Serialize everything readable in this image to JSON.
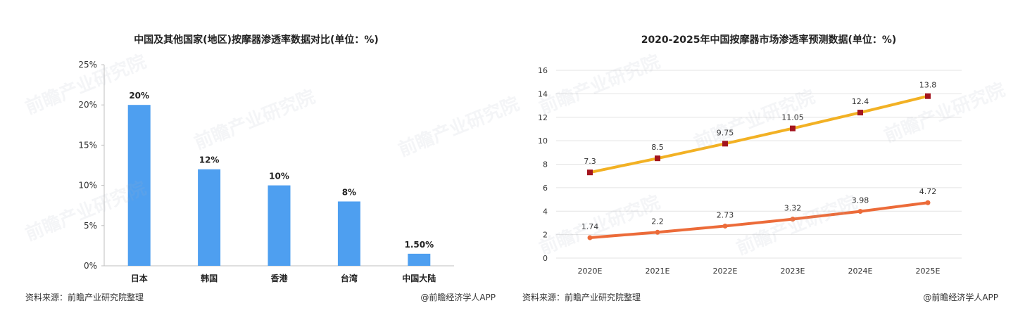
{
  "watermark": "前瞻产业研究院",
  "chart_data": [
    {
      "type": "bar",
      "title": "中国及其他国家(地区)按摩器渗透率数据对比(单位：%)",
      "categories": [
        "日本",
        "韩国",
        "香港",
        "台湾",
        "中国大陆"
      ],
      "values": [
        20,
        12,
        10,
        8,
        1.5
      ],
      "value_labels": [
        "20%",
        "12%",
        "10%",
        "8%",
        "1.50%"
      ],
      "yticks": [
        "0%",
        "5%",
        "10%",
        "15%",
        "20%",
        "25%"
      ],
      "ylim": [
        0,
        25
      ],
      "grid": false,
      "bar_color": "#4e9ff0",
      "source": "资料来源：前瞻产业研究院整理",
      "credit": "@前瞻经济学人APP"
    },
    {
      "type": "line",
      "title": "2020-2025年中国按摩器市场渗透率预测数据(单位：%)",
      "x": [
        "2020E",
        "2021E",
        "2022E",
        "2023E",
        "2024E",
        "2025E"
      ],
      "series": [
        {
          "values": [
            7.3,
            8.5,
            9.75,
            11.05,
            12.4,
            13.8
          ],
          "labels": [
            "7.3",
            "8.5",
            "9.75",
            "11.05",
            "12.4",
            "13.8"
          ],
          "color": "#f2b124",
          "marker": "square",
          "marker_color": "#a3141e"
        },
        {
          "values": [
            1.74,
            2.2,
            2.73,
            3.32,
            3.98,
            4.72
          ],
          "labels": [
            "1.74",
            "2.2",
            "2.73",
            "3.32",
            "3.98",
            "4.72"
          ],
          "color": "#ec6b39",
          "marker": "circle",
          "marker_color": "#ec6b39"
        }
      ],
      "yticks": [
        "0",
        "2",
        "4",
        "6",
        "8",
        "10",
        "12",
        "14",
        "16"
      ],
      "ylim": [
        0,
        16
      ],
      "grid": true,
      "source": "资料来源：前瞻产业研究院整理",
      "credit": "@前瞻经济学人APP"
    }
  ]
}
